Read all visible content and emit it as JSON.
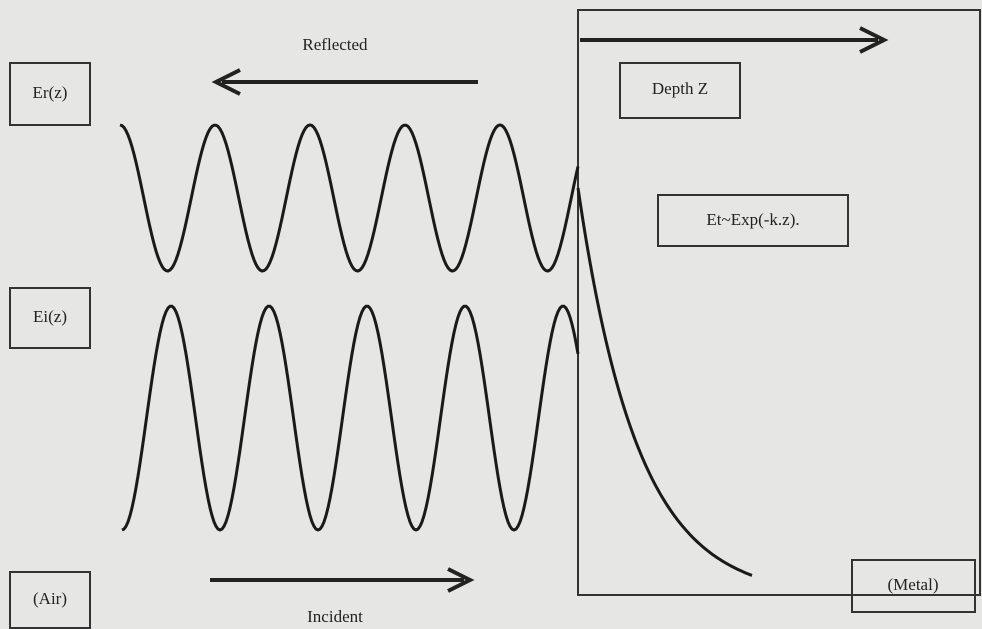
{
  "labels": {
    "reflected": "Reflected",
    "er": "Er(z)",
    "depth": "Depth Z",
    "et": "Et~Exp(-k.z).",
    "ei": "Ei(z)",
    "air": "(Air)",
    "metal": "(Metal)",
    "incident": "Incident"
  }
}
